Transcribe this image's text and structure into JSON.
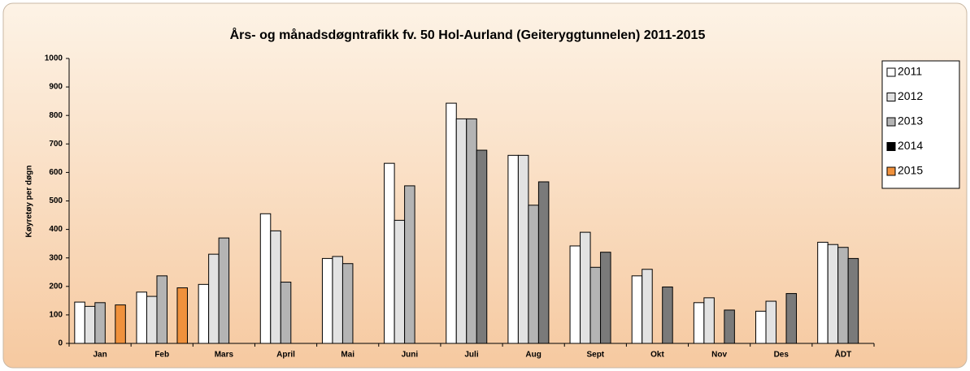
{
  "chart_data": {
    "type": "bar",
    "title": "Års- og månadsdøgntrafikk fv. 50 Hol-Aurland (Geiteryggtunnelen) 2011-2015",
    "y_label": "Køyretøy per døgn",
    "categories": [
      "Jan",
      "Feb",
      "Mars",
      "April",
      "Mai",
      "Juni",
      "Juli",
      "Aug",
      "Sept",
      "Okt",
      "Nov",
      "Des",
      "ÅDT"
    ],
    "series": [
      {
        "name": "2011",
        "color": "#ffffff",
        "values": [
          145,
          180,
          207,
          455,
          298,
          632,
          843,
          660,
          342,
          237,
          143,
          113,
          355
        ]
      },
      {
        "name": "2012",
        "color": "#e2e2e2",
        "values": [
          130,
          165,
          313,
          395,
          305,
          432,
          788,
          660,
          390,
          260,
          160,
          148,
          347
        ]
      },
      {
        "name": "2013",
        "color": "#b4b4b4",
        "values": [
          143,
          237,
          370,
          215,
          280,
          553,
          788,
          485,
          267,
          null,
          null,
          null,
          337
        ]
      },
      {
        "name": "2014",
        "color": "#7a7a7a",
        "values": [
          null,
          null,
          null,
          null,
          null,
          null,
          678,
          567,
          320,
          198,
          117,
          175,
          298
        ]
      },
      {
        "name": "2015",
        "color": "#f0913c",
        "values": [
          135,
          195,
          null,
          null,
          null,
          null,
          null,
          null,
          null,
          null,
          null,
          null,
          null
        ]
      }
    ],
    "ylim": [
      0,
      1000
    ],
    "yticks": [
      0,
      100,
      200,
      300,
      400,
      500,
      600,
      700,
      800,
      900,
      1000
    ],
    "grid": false,
    "legend": "right"
  }
}
